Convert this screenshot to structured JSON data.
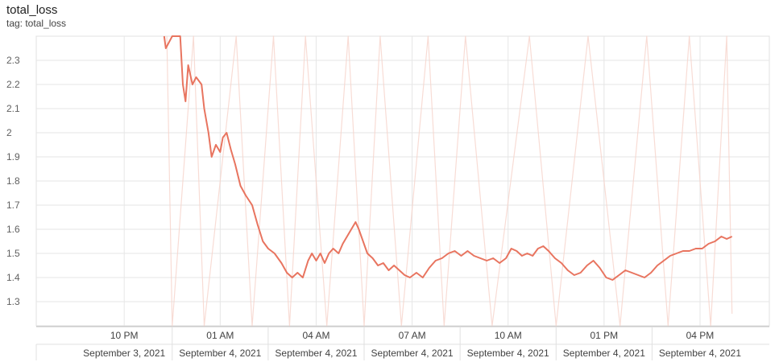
{
  "card": {
    "title": "total_loss",
    "tag": "tag: total_loss"
  },
  "chart_data": {
    "type": "line",
    "title": "total_loss",
    "subtitle": "tag: total_loss",
    "x_axis": {
      "type": "time",
      "range": [
        "2021-09-03T19:15",
        "2021-09-04T18:10"
      ],
      "time_ticks": [
        {
          "time": "2021-09-03T22:00",
          "label": "10 PM"
        },
        {
          "time": "2021-09-04T01:00",
          "label": "01 AM"
        },
        {
          "time": "2021-09-04T04:00",
          "label": "04 AM"
        },
        {
          "time": "2021-09-04T07:00",
          "label": "07 AM"
        },
        {
          "time": "2021-09-04T10:00",
          "label": "10 AM"
        },
        {
          "time": "2021-09-04T13:00",
          "label": "01 PM"
        },
        {
          "time": "2021-09-04T16:00",
          "label": "04 PM"
        }
      ],
      "date_labels": [
        "September 3, 2021",
        "September 4, 2021",
        "September 4, 2021",
        "September 4, 2021",
        "September 4, 2021",
        "September 4, 2021",
        "September 4, 2021"
      ]
    },
    "y_axis": {
      "range": [
        1.2,
        2.4
      ],
      "ticks": [
        1.3,
        1.4,
        1.5,
        1.6,
        1.7,
        1.8,
        1.9,
        2,
        2.1,
        2.2,
        2.3
      ]
    },
    "grid": true,
    "series": [
      {
        "style": "smoothed",
        "color": "#e8745f",
        "points": [
          [
            "2021-09-03T23:15",
            2.4
          ],
          [
            "2021-09-03T23:18",
            2.35
          ],
          [
            "2021-09-03T23:30",
            2.4
          ],
          [
            "2021-09-03T23:45",
            2.42
          ],
          [
            "2021-09-03T23:50",
            2.2
          ],
          [
            "2021-09-03T23:55",
            2.13
          ],
          [
            "2021-09-04T00:00",
            2.28
          ],
          [
            "2021-09-04T00:08",
            2.2
          ],
          [
            "2021-09-04T00:15",
            2.23
          ],
          [
            "2021-09-04T00:25",
            2.2
          ],
          [
            "2021-09-04T00:30",
            2.1
          ],
          [
            "2021-09-04T00:38",
            2.0
          ],
          [
            "2021-09-04T00:44",
            1.9
          ],
          [
            "2021-09-04T00:52",
            1.95
          ],
          [
            "2021-09-04T01:00",
            1.92
          ],
          [
            "2021-09-04T01:05",
            1.98
          ],
          [
            "2021-09-04T01:12",
            2.0
          ],
          [
            "2021-09-04T01:20",
            1.93
          ],
          [
            "2021-09-04T01:28",
            1.87
          ],
          [
            "2021-09-04T01:38",
            1.78
          ],
          [
            "2021-09-04T01:48",
            1.74
          ],
          [
            "2021-09-04T02:00",
            1.7
          ],
          [
            "2021-09-04T02:10",
            1.62
          ],
          [
            "2021-09-04T02:20",
            1.55
          ],
          [
            "2021-09-04T02:30",
            1.52
          ],
          [
            "2021-09-04T02:42",
            1.5
          ],
          [
            "2021-09-04T02:55",
            1.46
          ],
          [
            "2021-09-04T03:05",
            1.42
          ],
          [
            "2021-09-04T03:15",
            1.4
          ],
          [
            "2021-09-04T03:25",
            1.42
          ],
          [
            "2021-09-04T03:35",
            1.4
          ],
          [
            "2021-09-04T03:45",
            1.47
          ],
          [
            "2021-09-04T03:52",
            1.5
          ],
          [
            "2021-09-04T04:00",
            1.47
          ],
          [
            "2021-09-04T04:08",
            1.5
          ],
          [
            "2021-09-04T04:16",
            1.46
          ],
          [
            "2021-09-04T04:24",
            1.5
          ],
          [
            "2021-09-04T04:32",
            1.52
          ],
          [
            "2021-09-04T04:42",
            1.5
          ],
          [
            "2021-09-04T04:50",
            1.54
          ],
          [
            "2021-09-04T04:58",
            1.57
          ],
          [
            "2021-09-04T05:06",
            1.6
          ],
          [
            "2021-09-04T05:14",
            1.63
          ],
          [
            "2021-09-04T05:20",
            1.6
          ],
          [
            "2021-09-04T05:28",
            1.55
          ],
          [
            "2021-09-04T05:36",
            1.5
          ],
          [
            "2021-09-04T05:46",
            1.48
          ],
          [
            "2021-09-04T05:56",
            1.45
          ],
          [
            "2021-09-04T06:06",
            1.46
          ],
          [
            "2021-09-04T06:16",
            1.43
          ],
          [
            "2021-09-04T06:26",
            1.45
          ],
          [
            "2021-09-04T06:36",
            1.43
          ],
          [
            "2021-09-04T06:46",
            1.41
          ],
          [
            "2021-09-04T06:56",
            1.4
          ],
          [
            "2021-09-04T07:08",
            1.42
          ],
          [
            "2021-09-04T07:20",
            1.4
          ],
          [
            "2021-09-04T07:32",
            1.44
          ],
          [
            "2021-09-04T07:44",
            1.47
          ],
          [
            "2021-09-04T07:56",
            1.48
          ],
          [
            "2021-09-04T08:08",
            1.5
          ],
          [
            "2021-09-04T08:20",
            1.51
          ],
          [
            "2021-09-04T08:32",
            1.49
          ],
          [
            "2021-09-04T08:44",
            1.51
          ],
          [
            "2021-09-04T08:56",
            1.49
          ],
          [
            "2021-09-04T09:08",
            1.48
          ],
          [
            "2021-09-04T09:20",
            1.47
          ],
          [
            "2021-09-04T09:32",
            1.48
          ],
          [
            "2021-09-04T09:44",
            1.46
          ],
          [
            "2021-09-04T09:56",
            1.48
          ],
          [
            "2021-09-04T10:06",
            1.52
          ],
          [
            "2021-09-04T10:16",
            1.51
          ],
          [
            "2021-09-04T10:26",
            1.49
          ],
          [
            "2021-09-04T10:36",
            1.5
          ],
          [
            "2021-09-04T10:46",
            1.49
          ],
          [
            "2021-09-04T10:56",
            1.52
          ],
          [
            "2021-09-04T11:06",
            1.53
          ],
          [
            "2021-09-04T11:16",
            1.51
          ],
          [
            "2021-09-04T11:28",
            1.48
          ],
          [
            "2021-09-04T11:40",
            1.46
          ],
          [
            "2021-09-04T11:52",
            1.43
          ],
          [
            "2021-09-04T12:04",
            1.41
          ],
          [
            "2021-09-04T12:16",
            1.42
          ],
          [
            "2021-09-04T12:28",
            1.45
          ],
          [
            "2021-09-04T12:40",
            1.47
          ],
          [
            "2021-09-04T12:52",
            1.44
          ],
          [
            "2021-09-04T13:04",
            1.4
          ],
          [
            "2021-09-04T13:16",
            1.39
          ],
          [
            "2021-09-04T13:28",
            1.41
          ],
          [
            "2021-09-04T13:40",
            1.43
          ],
          [
            "2021-09-04T13:52",
            1.42
          ],
          [
            "2021-09-04T14:04",
            1.41
          ],
          [
            "2021-09-04T14:16",
            1.4
          ],
          [
            "2021-09-04T14:28",
            1.42
          ],
          [
            "2021-09-04T14:40",
            1.45
          ],
          [
            "2021-09-04T14:52",
            1.47
          ],
          [
            "2021-09-04T15:04",
            1.49
          ],
          [
            "2021-09-04T15:16",
            1.5
          ],
          [
            "2021-09-04T15:28",
            1.51
          ],
          [
            "2021-09-04T15:40",
            1.51
          ],
          [
            "2021-09-04T15:52",
            1.52
          ],
          [
            "2021-09-04T16:04",
            1.52
          ],
          [
            "2021-09-04T16:16",
            1.54
          ],
          [
            "2021-09-04T16:28",
            1.55
          ],
          [
            "2021-09-04T16:40",
            1.57
          ],
          [
            "2021-09-04T16:50",
            1.56
          ],
          [
            "2021-09-04T17:00",
            1.57
          ]
        ]
      },
      {
        "style": "raw",
        "color": "#f6d3cb",
        "description_hidden": true,
        "points": [
          [
            "2021-09-03T23:20",
            2.4
          ],
          [
            "2021-09-03T23:30",
            1.2
          ],
          [
            "2021-09-04T00:10",
            2.4
          ],
          [
            "2021-09-04T00:30",
            1.2
          ],
          [
            "2021-09-04T01:30",
            2.4
          ],
          [
            "2021-09-04T02:00",
            1.2
          ],
          [
            "2021-09-04T02:40",
            2.4
          ],
          [
            "2021-09-04T03:10",
            1.2
          ],
          [
            "2021-09-04T03:40",
            2.4
          ],
          [
            "2021-09-04T04:20",
            1.2
          ],
          [
            "2021-09-04T05:00",
            2.4
          ],
          [
            "2021-09-04T05:30",
            1.2
          ],
          [
            "2021-09-04T06:00",
            2.4
          ],
          [
            "2021-09-04T06:40",
            1.2
          ],
          [
            "2021-09-04T07:30",
            2.4
          ],
          [
            "2021-09-04T08:00",
            1.2
          ],
          [
            "2021-09-04T08:40",
            2.4
          ],
          [
            "2021-09-04T09:30",
            1.2
          ],
          [
            "2021-09-04T10:40",
            2.4
          ],
          [
            "2021-09-04T11:30",
            1.2
          ],
          [
            "2021-09-04T12:30",
            2.4
          ],
          [
            "2021-09-04T13:30",
            1.2
          ],
          [
            "2021-09-04T14:20",
            2.4
          ],
          [
            "2021-09-04T15:00",
            1.2
          ],
          [
            "2021-09-04T15:40",
            2.4
          ],
          [
            "2021-09-04T16:20",
            1.2
          ],
          [
            "2021-09-04T16:50",
            2.4
          ],
          [
            "2021-09-04T17:00",
            1.25
          ]
        ]
      }
    ]
  }
}
